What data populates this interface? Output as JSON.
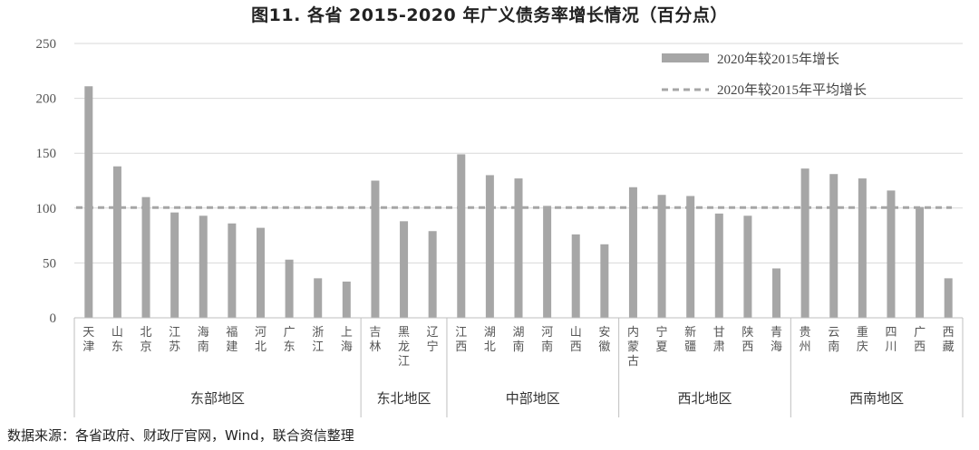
{
  "title": "图11.   各省 2015-2020 年广义债务率增长情况（百分点）",
  "source": "数据来源：各省政府、财政厅官网，Wind，联合资信整理",
  "chart_data": {
    "type": "bar",
    "title": "图11.   各省 2015-2020 年广义债务率增长情况（百分点）",
    "ylim": [
      0,
      250
    ],
    "yticks": [
      0,
      50,
      100,
      150,
      200,
      250
    ],
    "grid": true,
    "legend_position": "top-right",
    "categories": [
      "天津",
      "山东",
      "北京",
      "江苏",
      "海南",
      "福建",
      "河北",
      "广东",
      "浙江",
      "上海",
      "吉林",
      "黑龙江",
      "辽宁",
      "江西",
      "湖北",
      "湖南",
      "河南",
      "山西",
      "安徽",
      "内蒙古",
      "宁夏",
      "新疆",
      "甘肃",
      "陕西",
      "青海",
      "贵州",
      "云南",
      "重庆",
      "四川",
      "广西",
      "西藏"
    ],
    "groups": [
      {
        "name": "东部地区",
        "count": 10
      },
      {
        "name": "东北地区",
        "count": 3
      },
      {
        "name": "中部地区",
        "count": 6
      },
      {
        "name": "西北地区",
        "count": 6
      },
      {
        "name": "西南地区",
        "count": 6
      }
    ],
    "series": [
      {
        "name": "2020年较2015年增长",
        "type": "bar",
        "color": "#a6a6a6",
        "values": [
          211,
          138,
          110,
          96,
          93,
          86,
          82,
          53,
          36,
          33,
          125,
          88,
          79,
          149,
          130,
          127,
          102,
          76,
          67,
          119,
          112,
          111,
          95,
          93,
          45,
          136,
          131,
          127,
          116,
          101,
          36
        ]
      },
      {
        "name": "2020年较2015年平均增长",
        "type": "line",
        "style": "dashed",
        "color": "#a6a6a6",
        "value": 100.5
      }
    ]
  }
}
